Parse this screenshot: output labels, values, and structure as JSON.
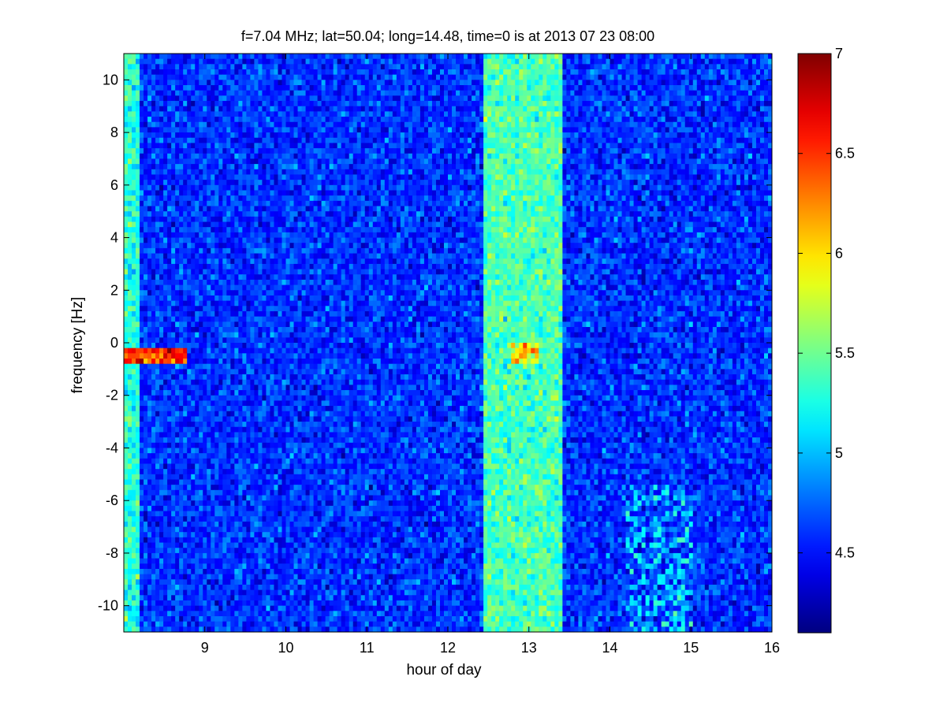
{
  "chart_data": {
    "type": "heatmap",
    "title": "f=7.04 MHz;  lat=50.04; long=14.48, time=0 is at 2013 07 23 08:00",
    "xlabel": "hour of day",
    "ylabel": "frequency [Hz]",
    "xlim": [
      8,
      16
    ],
    "ylim": [
      -11,
      11
    ],
    "xticks": [
      9,
      10,
      11,
      12,
      13,
      14,
      15,
      16
    ],
    "yticks": [
      -10,
      -8,
      -6,
      -4,
      -2,
      0,
      2,
      4,
      6,
      8,
      10
    ],
    "grid": false,
    "colormap": "jet",
    "colorbar": {
      "range": [
        4.1,
        7.0
      ],
      "ticks": [
        4.5,
        5,
        5.5,
        6,
        6.5,
        7
      ]
    },
    "background_level": 4.6,
    "bands": [
      {
        "x_start": 8.0,
        "x_end": 8.2,
        "level": 5.3
      },
      {
        "x_start": 12.45,
        "x_end": 13.4,
        "level": 5.4
      }
    ],
    "features": [
      {
        "label": "carrier trace",
        "x_start": 8.0,
        "x_end": 8.8,
        "y": -0.5,
        "level": 6.8
      },
      {
        "label": "carrier trace",
        "x_start": 12.8,
        "x_end": 13.1,
        "y": -0.4,
        "level": 6.3
      },
      {
        "label": "Doppler traces",
        "x_start": 14.2,
        "x_end": 15.0,
        "y_start": -11,
        "y_end": -5.5,
        "level": 5.1
      }
    ]
  }
}
